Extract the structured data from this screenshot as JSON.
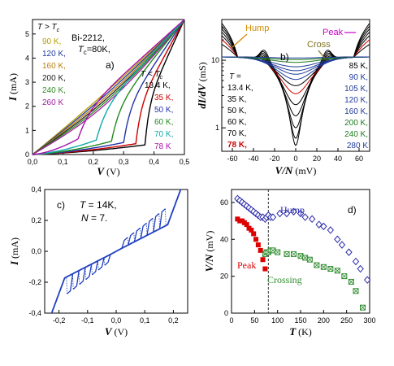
{
  "chart_data": [
    {
      "panel": "a",
      "type": "line",
      "panel_label": "a)",
      "sample": "Bi-2212,",
      "tc_text": "T",
      "tc_sub": "c",
      "tc_value": "=80K,",
      "xlabel": "V",
      "xunit": "(V)",
      "ylabel": "I",
      "yunit": "(mA)",
      "xlim": [
        0,
        0.5
      ],
      "ylim": [
        0,
        5.6
      ],
      "xticks": [
        "0,0",
        "0,1",
        "0,2",
        "0,3",
        "0,4",
        "0,5"
      ],
      "yticks": [
        "0",
        "1",
        "2",
        "3",
        "4",
        "5"
      ],
      "grid": false,
      "legend_above_title": "T > T",
      "legend_above_sub": "c",
      "legend_above": [
        {
          "label": "90 K,",
          "color": "#b8a000",
          "knee": 0.0
        },
        {
          "label": "120 K,",
          "color": "#1f3a9a",
          "knee": 0.0
        },
        {
          "label": "160 K,",
          "color": "#c08010",
          "knee": 0.0
        },
        {
          "label": "200 K,",
          "color": "#222222",
          "knee": 0.0
        },
        {
          "label": "240 K,",
          "color": "#2e8b22",
          "knee": 0.0
        },
        {
          "label": "260 K",
          "color": "#a020a0",
          "knee": 0.0
        }
      ],
      "legend_below_title": "T < T",
      "legend_below_sub": "c",
      "legend_below": [
        {
          "label": "13.4 K,",
          "color": "#000000",
          "knee": 0.37
        },
        {
          "label": "35 K,",
          "color": "#cc0000",
          "knee": 0.34
        },
        {
          "label": "50 K,",
          "color": "#2233aa",
          "knee": 0.3
        },
        {
          "label": "60 K,",
          "color": "#228b22",
          "knee": 0.26
        },
        {
          "label": "70 K,",
          "color": "#11aaaa",
          "knee": 0.21
        },
        {
          "label": "78 K",
          "color": "#aa11aa",
          "knee": 0.15
        }
      ]
    },
    {
      "panel": "b",
      "type": "line",
      "panel_label": "b)",
      "xlabel": "V/N",
      "xunit": "(mV)",
      "ylabel": "dI/dV",
      "yunit": "(mS)",
      "xlim": [
        -70,
        70
      ],
      "yscale": "log",
      "ytick_labels": [
        "1",
        "10"
      ],
      "xticks": [
        "-60",
        "-40",
        "-20",
        "0",
        "20",
        "40",
        "60"
      ],
      "annotations": {
        "hump": "Hump",
        "peak": "Peak",
        "cross": "Cross"
      },
      "hump_color": "#d08a00",
      "peak_color": "#cc00cc",
      "cross_color": "#807020",
      "legend_left_title": "T =",
      "legend_left": [
        {
          "label": "13.4 K,",
          "color": "#000000"
        },
        {
          "label": "35 K,",
          "color": "#000000"
        },
        {
          "label": "50 K,",
          "color": "#000000"
        },
        {
          "label": "60 K,",
          "color": "#000000"
        },
        {
          "label": "70 K,",
          "color": "#000000"
        },
        {
          "label": "78 K,",
          "color": "#cc0000"
        }
      ],
      "legend_right": [
        {
          "label": "85 K,",
          "color": "#000000"
        },
        {
          "label": "90 K,",
          "color": "#1f3a9a"
        },
        {
          "label": "105 K,",
          "color": "#1f3a9a"
        },
        {
          "label": "120 K,",
          "color": "#1f3a9a"
        },
        {
          "label": "160 K,",
          "color": "#1f3a9a"
        },
        {
          "label": "200 K,",
          "color": "#1f7a1f"
        },
        {
          "label": "240 K,",
          "color": "#1f7a1f"
        },
        {
          "label": "280 K",
          "color": "#1f3a9a"
        }
      ]
    },
    {
      "panel": "c",
      "type": "line",
      "panel_label": "c)",
      "t_text": "T",
      "t_value": "= 14K,",
      "n_text": "N",
      "n_value": "= 7.",
      "xlabel": "V",
      "xunit": "(V)",
      "ylabel": "I",
      "yunit": "(mA)",
      "xlim": [
        -0.25,
        0.25
      ],
      "ylim": [
        -0.4,
        0.4
      ],
      "xticks": [
        "-0,2",
        "-0,1",
        "0,0",
        "0,1",
        "0,2"
      ],
      "yticks": [
        "-0,4",
        "-0,2",
        "0,0",
        "0,2",
        "0,4"
      ],
      "color": "#1f3fbf"
    },
    {
      "panel": "d",
      "type": "scatter",
      "panel_label": "d)",
      "xlabel": "T",
      "xunit": "(K)",
      "ylabel": "V/N",
      "yunit": "(mV)",
      "xlim": [
        0,
        300
      ],
      "ylim": [
        0,
        67
      ],
      "xticks": [
        "0",
        "50",
        "100",
        "150",
        "200",
        "250",
        "300"
      ],
      "yticks": [
        "0",
        "20",
        "40",
        "60"
      ],
      "tc_line": 80,
      "series": [
        {
          "name": "Hump",
          "color": "#2a2aaa",
          "marker": "diamond",
          "points": [
            [
              13,
              62
            ],
            [
              18,
              61
            ],
            [
              23,
              60
            ],
            [
              28,
              59
            ],
            [
              33,
              58
            ],
            [
              38,
              57
            ],
            [
              43,
              56
            ],
            [
              48,
              55
            ],
            [
              53,
              54
            ],
            [
              58,
              53
            ],
            [
              63,
              52
            ],
            [
              68,
              52
            ],
            [
              73,
              51
            ],
            [
              76,
              52
            ],
            [
              80,
              53
            ],
            [
              85,
              52
            ],
            [
              90,
              52
            ],
            [
              105,
              54
            ],
            [
              120,
              54
            ],
            [
              135,
              55
            ],
            [
              150,
              54
            ],
            [
              160,
              52
            ],
            [
              175,
              51
            ],
            [
              190,
              48
            ],
            [
              200,
              47
            ],
            [
              215,
              45
            ],
            [
              230,
              40
            ],
            [
              240,
              37
            ],
            [
              255,
              33
            ],
            [
              270,
              28
            ],
            [
              280,
              24
            ],
            [
              295,
              18
            ]
          ]
        },
        {
          "name": "Peak",
          "color": "#dd0000",
          "marker": "square",
          "points": [
            [
              13,
              51
            ],
            [
              18,
              50
            ],
            [
              23,
              50
            ],
            [
              28,
              49
            ],
            [
              33,
              48
            ],
            [
              38,
              46
            ],
            [
              43,
              45
            ],
            [
              48,
              43
            ],
            [
              53,
              40
            ],
            [
              58,
              37
            ],
            [
              63,
              34
            ],
            [
              68,
              29
            ],
            [
              73,
              24
            ]
          ]
        },
        {
          "name": "Crossing",
          "color": "#2e8b2e",
          "marker": "square-x",
          "points": [
            [
              73,
              32
            ],
            [
              76,
              33
            ],
            [
              80,
              33
            ],
            [
              85,
              34
            ],
            [
              90,
              34
            ],
            [
              100,
              33
            ],
            [
              120,
              32
            ],
            [
              135,
              32
            ],
            [
              150,
              31
            ],
            [
              160,
              30
            ],
            [
              170,
              29
            ],
            [
              185,
              26
            ],
            [
              200,
              25
            ],
            [
              215,
              24
            ],
            [
              230,
              23
            ],
            [
              245,
              20
            ],
            [
              260,
              17
            ],
            [
              270,
              12
            ],
            [
              285,
              3
            ]
          ]
        }
      ]
    }
  ]
}
